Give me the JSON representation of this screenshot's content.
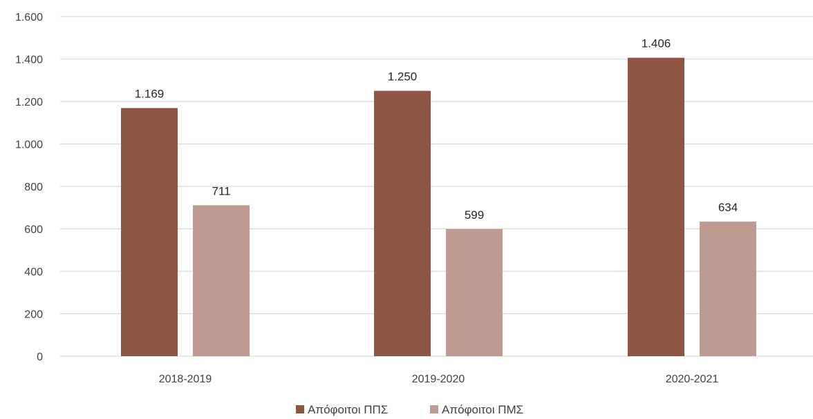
{
  "chart_data": {
    "type": "bar",
    "categories": [
      "2018-2019",
      "2019-2020",
      "2020-2021"
    ],
    "series": [
      {
        "name": "Απόφοιτοι ΠΠΣ",
        "values": [
          1169,
          1250,
          1406
        ],
        "labels": [
          "1.169",
          "1.250",
          "1.406"
        ],
        "color": "#8e5642"
      },
      {
        "name": "Απόφοιτοι ΠΜΣ",
        "values": [
          711,
          599,
          634
        ],
        "labels": [
          "711",
          "599",
          "634"
        ],
        "color": "#bf9a90"
      }
    ],
    "ylim": [
      0,
      1600
    ],
    "yticks": [
      0,
      200,
      400,
      600,
      800,
      1000,
      1200,
      1400,
      1600
    ],
    "ytick_labels": [
      "0",
      "200",
      "400",
      "600",
      "800",
      "1.000",
      "1.200",
      "1.400",
      "1.600"
    ],
    "title": "",
    "xlabel": "",
    "ylabel": "",
    "grid": "horizontal",
    "gridline_color": "#d9d9d9",
    "legend_position": "bottom-center"
  }
}
